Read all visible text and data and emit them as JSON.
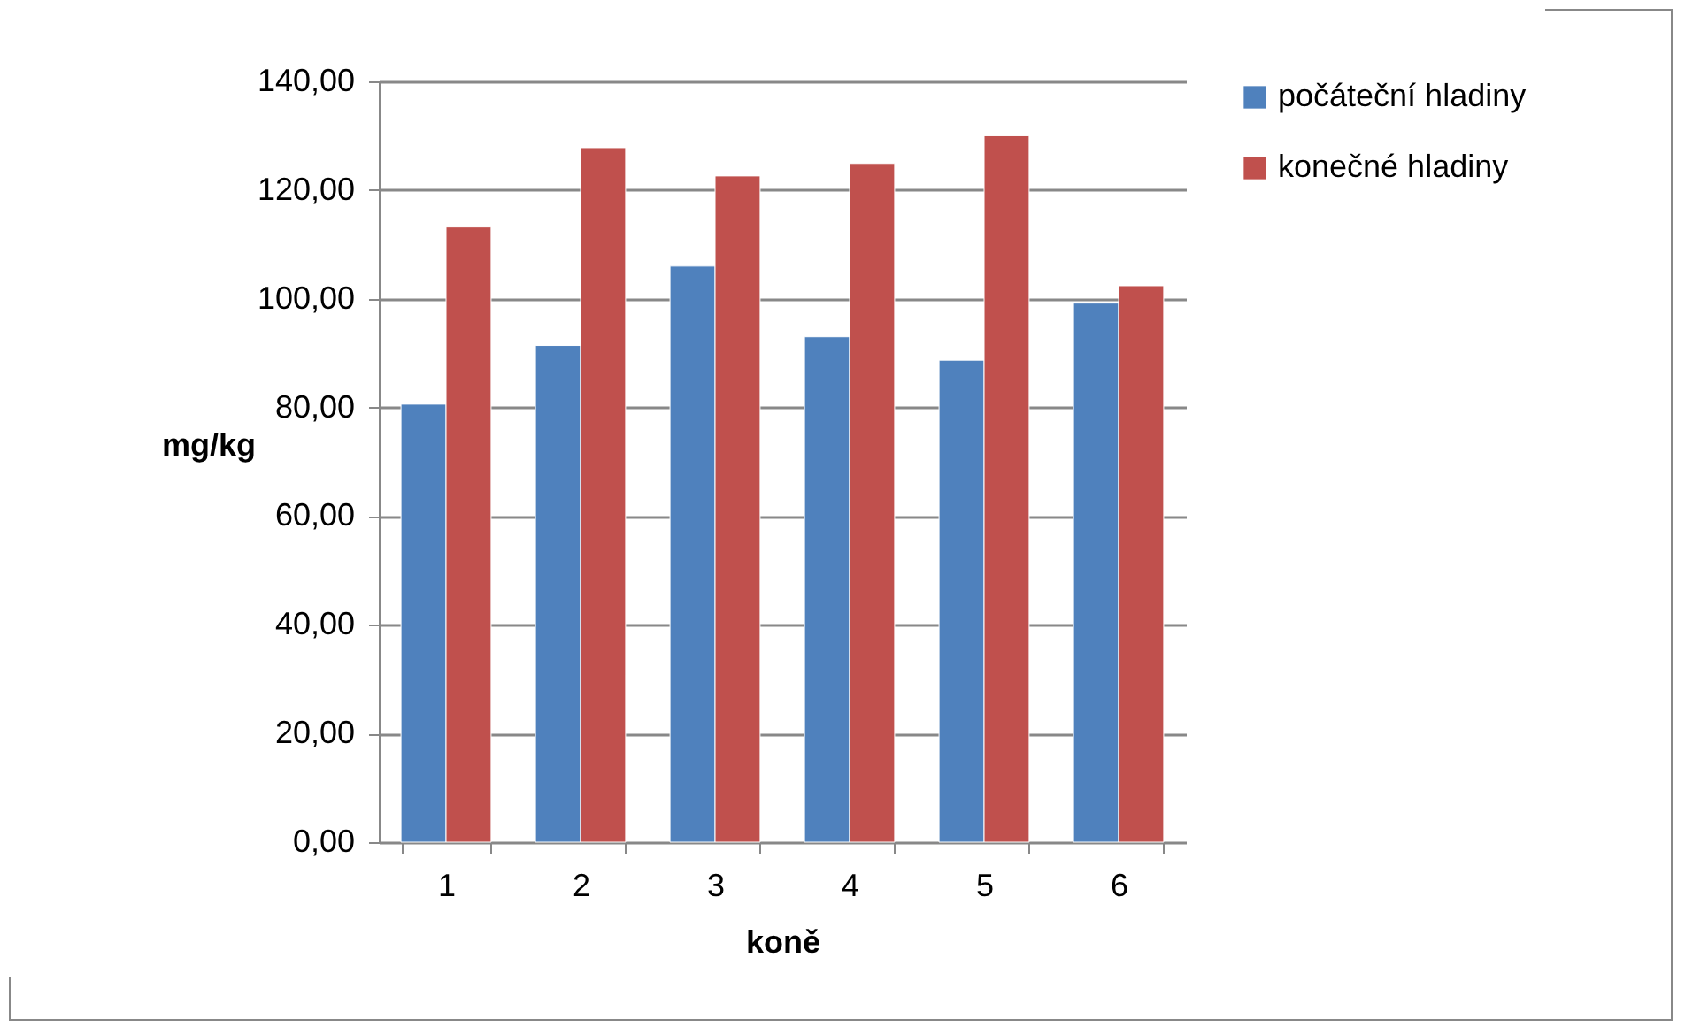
{
  "chart_data": {
    "type": "bar",
    "xlabel": "koně",
    "ylabel": "mg/kg",
    "categories": [
      "1",
      "2",
      "3",
      "4",
      "5",
      "6"
    ],
    "series": [
      {
        "name": "počáteční hladiny",
        "color": "#4f81bd",
        "values": [
          80.6,
          91.4,
          106.0,
          93.0,
          88.7,
          99.2
        ]
      },
      {
        "name": "konečné hladiny",
        "color": "#c0504d",
        "values": [
          113.2,
          127.8,
          122.6,
          124.9,
          130.0,
          102.4
        ]
      }
    ],
    "ylim": [
      0,
      140
    ],
    "yticks": [
      {
        "value": 0,
        "label": "0,00"
      },
      {
        "value": 20,
        "label": "20,00"
      },
      {
        "value": 40,
        "label": "40,00"
      },
      {
        "value": 60,
        "label": "60,00"
      },
      {
        "value": 80,
        "label": "80,00"
      },
      {
        "value": 100,
        "label": "100,00"
      },
      {
        "value": 120,
        "label": "120,00"
      },
      {
        "value": 140,
        "label": "140,00"
      }
    ],
    "grid": "y",
    "legend": "right"
  }
}
